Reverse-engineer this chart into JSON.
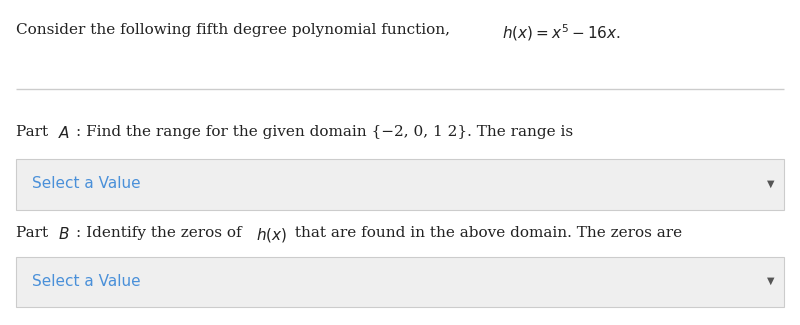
{
  "bg_color": "#ffffff",
  "title_plain": "Consider the following fifth degree polynomial function, ",
  "title_math": "$h(x) = x^{5} - 16x$.",
  "part_a_plain1": "Part ",
  "part_a_italic": "$\\mathit{A}$",
  "part_a_plain2": ": Find the range for the given domain {−2, 0, 1 2}. The range is",
  "part_b_plain1": "Part ",
  "part_b_italic": "$\\mathit{B}$",
  "part_b_plain2": ": Identify the zeros of ",
  "part_b_math": "$h(x)$",
  "part_b_plain3": " that are found in the above domain. The zeros are",
  "dropdown_text": "Select a Value",
  "dropdown_color": "#4a90d9",
  "dropdown_bg": "#efefef",
  "dropdown_border": "#cccccc",
  "separator_color": "#cccccc",
  "font_size": 11,
  "arrow_color": "#555555",
  "text_color": "#222222"
}
